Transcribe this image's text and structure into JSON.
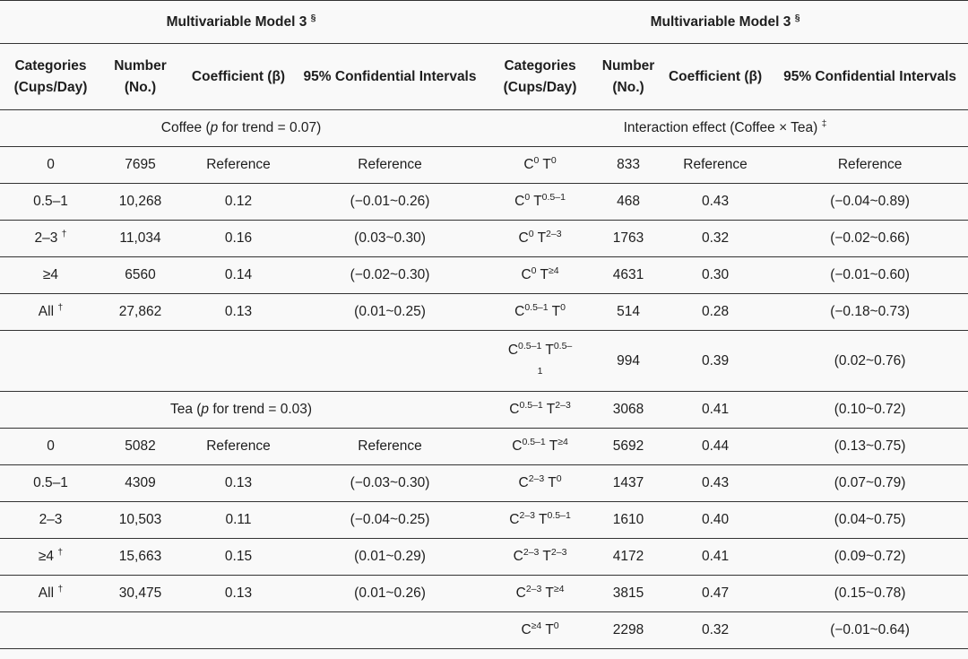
{
  "header": {
    "left_title": "Multivariable Model 3",
    "right_title": "Multivariable Model 3",
    "title_mark": "§",
    "columns": [
      "Categories (Cups/Day)",
      "Number (No.)",
      "Coefficient (β)",
      "95% Confidential Intervals"
    ]
  },
  "sections": {
    "coffee": {
      "pre": "Coffee (",
      "p": "p",
      "post": " for trend = 0.07)"
    },
    "tea": {
      "pre": "Tea (",
      "p": "p",
      "post": " for trend = 0.03)"
    },
    "interaction": {
      "label": "Interaction effect (Coffee × Tea)",
      "mark": "‡"
    }
  },
  "rows": [
    {
      "lc": "0",
      "lm": "",
      "ln": "7695",
      "lb": "Reference",
      "li": "Reference",
      "rcb": "0",
      "rtb": "0",
      "rn": "833",
      "rb": "Reference",
      "ri": "Reference"
    },
    {
      "lc": "0.5–1",
      "lm": "",
      "ln": "10,268",
      "lb": "0.12",
      "li": "(−0.01~0.26)",
      "rcb": "0",
      "rtb": "0.5–1",
      "rn": "468",
      "rb": "0.43",
      "ri": "(−0.04~0.89)"
    },
    {
      "lc": "2–3",
      "lm": "†",
      "ln": "11,034",
      "lb": "0.16",
      "li": "(0.03~0.30)",
      "rcb": "0",
      "rtb": "2–3",
      "rn": "1763",
      "rb": "0.32",
      "ri": "(−0.02~0.66)"
    },
    {
      "lc": "≥4",
      "lm": "",
      "ln": "6560",
      "lb": "0.14",
      "li": "(−0.02~0.30)",
      "rcb": "0",
      "rtb": "≥4",
      "rn": "4631",
      "rb": "0.30",
      "ri": "(−0.01~0.60)"
    },
    {
      "lc": "All",
      "lm": "†",
      "ln": "27,862",
      "lb": "0.13",
      "li": "(0.01~0.25)",
      "rcb": "0.5–1",
      "rtb": "0",
      "rn": "514",
      "rb": "0.28",
      "ri": "(−0.18~0.73)"
    },
    {
      "lc": "",
      "lm": "",
      "ln": "",
      "lb": "",
      "li": "",
      "rcb": "0.5–1",
      "rtb": "0.5–",
      "rtw": "1",
      "rn": "994",
      "rb": "0.39",
      "ri": "(0.02~0.76)"
    },
    {
      "rcb": "0.5–1",
      "rtb": "2–3",
      "rn": "3068",
      "rb": "0.41",
      "ri": "(0.10~0.72)"
    },
    {
      "lc": "0",
      "lm": "",
      "ln": "5082",
      "lb": "Reference",
      "li": "Reference",
      "rcb": "0.5–1",
      "rtb": "≥4",
      "rn": "5692",
      "rb": "0.44",
      "ri": "(0.13~0.75)"
    },
    {
      "lc": "0.5–1",
      "lm": "",
      "ln": "4309",
      "lb": "0.13",
      "li": "(−0.03~0.30)",
      "rcb": "2–3",
      "rtb": "0",
      "rn": "1437",
      "rb": "0.43",
      "ri": "(0.07~0.79)"
    },
    {
      "lc": "2–3",
      "lm": "",
      "ln": "10,503",
      "lb": "0.11",
      "li": "(−0.04~0.25)",
      "rcb": "2–3",
      "rtb": "0.5–1",
      "rn": "1610",
      "rb": "0.40",
      "ri": "(0.04~0.75)"
    },
    {
      "lc": "≥4",
      "lm": "†",
      "ln": "15,663",
      "lb": "0.15",
      "li": "(0.01~0.29)",
      "rcb": "2–3",
      "rtb": "2–3",
      "rn": "4172",
      "rb": "0.41",
      "ri": "(0.09~0.72)"
    },
    {
      "lc": "All",
      "lm": "†",
      "ln": "30,475",
      "lb": "0.13",
      "li": "(0.01~0.26)",
      "rcb": "2–3",
      "rtb": "≥4",
      "rn": "3815",
      "rb": "0.47",
      "ri": "(0.15~0.78)"
    },
    {
      "lc": "",
      "lm": "",
      "ln": "",
      "lb": "",
      "li": "",
      "rcb": "≥4",
      "rtb": "0",
      "rn": "2298",
      "rb": "0.32",
      "ri": "(−0.01~0.64)"
    }
  ],
  "letters": {
    "c": "C",
    "t": "T"
  }
}
